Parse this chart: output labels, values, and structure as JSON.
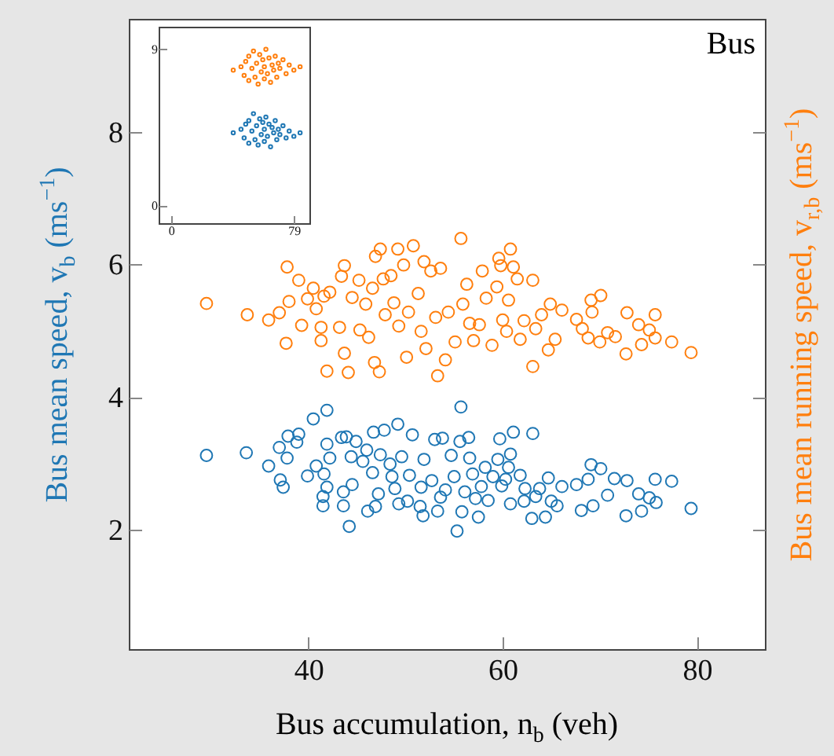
{
  "chart_data": [
    {
      "type": "scatter",
      "xlabel": "Bus accumulation, n$_{b}$ (veh)",
      "ylabel": "Bus mean speed, v$_{b}$ (ms$^{−1}$)",
      "y2label": "Bus mean running speed, v$_{r,b}$ (ms$^{−1}$)",
      "annotations": [
        "Bus"
      ],
      "marker": "circle",
      "xlim": [
        21.5,
        87
      ],
      "xticks": [
        40,
        60,
        80
      ],
      "ylim": [
        0.2,
        9.7
      ],
      "yticks": [
        2,
        4,
        6,
        8
      ],
      "series": [
        {
          "color": "#1f77b4",
          "x": [
            29.5,
            33.6,
            35.9,
            37.0,
            37.8,
            37.1,
            37.4,
            37.9,
            39.0,
            38.8,
            39.9,
            40.5,
            40.8,
            41.5,
            41.5,
            41.6,
            41.9,
            41.9,
            41.9,
            42.2,
            43.4,
            43.6,
            43.6,
            44.2,
            43.9,
            44.4,
            44.5,
            44.9,
            45.6,
            46.0,
            46.1,
            46.6,
            46.7,
            46.9,
            47.2,
            47.4,
            47.8,
            48.4,
            48.6,
            48.9,
            49.2,
            49.3,
            49.6,
            50.2,
            50.4,
            50.7,
            51.5,
            51.6,
            51.8,
            51.9,
            52.7,
            53.0,
            53.3,
            53.6,
            53.8,
            54.1,
            54.7,
            55.0,
            55.3,
            55.6,
            55.7,
            55.8,
            56.1,
            56.5,
            56.6,
            56.9,
            57.2,
            57.5,
            57.8,
            58.2,
            58.5,
            59.0,
            59.5,
            59.7,
            59.9,
            60.3,
            60.6,
            60.8,
            60.8,
            61.1,
            61.8,
            62.2,
            62.3,
            63.0,
            63.1,
            63.4,
            63.8,
            64.4,
            64.7,
            65.0,
            65.6,
            66.1,
            67.6,
            68.1,
            68.8,
            69.1,
            69.3,
            70.1,
            70.8,
            71.5,
            72.7,
            72.8,
            74.0,
            74.3,
            75.1,
            75.7,
            75.8,
            77.4,
            79.4
          ],
          "values": [
            3.12,
            3.16,
            2.96,
            3.24,
            3.08,
            2.75,
            2.64,
            3.41,
            3.44,
            3.32,
            2.81,
            3.67,
            2.96,
            2.5,
            2.36,
            2.84,
            3.8,
            3.29,
            2.64,
            3.08,
            3.39,
            2.57,
            2.36,
            2.05,
            3.4,
            3.1,
            2.68,
            3.33,
            3.03,
            3.2,
            2.28,
            2.86,
            3.47,
            2.35,
            2.54,
            3.13,
            3.5,
            2.99,
            2.8,
            2.62,
            3.59,
            2.39,
            3.1,
            2.43,
            2.82,
            3.43,
            2.35,
            2.64,
            2.21,
            3.06,
            2.74,
            3.36,
            2.28,
            2.49,
            3.38,
            2.6,
            3.12,
            2.8,
            1.98,
            3.33,
            3.85,
            2.27,
            2.57,
            3.39,
            3.08,
            2.84,
            2.47,
            2.19,
            2.65,
            2.94,
            2.44,
            2.8,
            3.06,
            3.37,
            2.66,
            2.76,
            2.94,
            3.14,
            2.39,
            3.47,
            2.82,
            2.43,
            2.62,
            2.17,
            3.45,
            2.5,
            2.62,
            2.19,
            2.78,
            2.43,
            2.36,
            2.65,
            2.68,
            2.29,
            2.76,
            2.98,
            2.36,
            2.92,
            2.52,
            2.77,
            2.21,
            2.74,
            2.54,
            2.28,
            2.48,
            2.76,
            2.41,
            2.73,
            2.32
          ]
        },
        {
          "color": "#ff7f0e",
          "x": [
            29.5,
            33.7,
            35.9,
            37.0,
            37.7,
            37.8,
            38.0,
            39.0,
            39.3,
            39.9,
            40.5,
            40.8,
            41.3,
            41.3,
            41.6,
            41.9,
            42.2,
            43.4,
            43.7,
            43.7,
            43.2,
            44.1,
            44.5,
            45.2,
            45.3,
            45.9,
            46.2,
            46.6,
            46.8,
            46.9,
            47.3,
            47.4,
            47.7,
            47.9,
            48.5,
            48.8,
            49.2,
            49.3,
            49.8,
            50.1,
            50.3,
            50.8,
            51.3,
            51.6,
            51.9,
            52.1,
            52.6,
            53.1,
            53.3,
            53.6,
            54.1,
            54.4,
            55.1,
            55.7,
            55.9,
            56.3,
            56.6,
            57.0,
            57.6,
            57.9,
            58.3,
            58.9,
            59.4,
            59.6,
            59.8,
            60.0,
            60.4,
            60.6,
            60.8,
            61.1,
            61.5,
            61.8,
            62.2,
            63.1,
            63.1,
            63.4,
            64.0,
            64.7,
            64.9,
            65.4,
            66.1,
            67.6,
            68.2,
            68.8,
            69.1,
            69.2,
            70.0,
            70.1,
            70.8,
            71.6,
            72.7,
            72.8,
            74.0,
            74.3,
            75.1,
            75.7,
            75.7,
            77.4,
            79.4
          ],
          "values": [
            5.41,
            5.24,
            5.16,
            5.27,
            4.81,
            5.96,
            5.44,
            5.76,
            5.08,
            5.48,
            5.64,
            5.33,
            5.05,
            4.85,
            5.52,
            4.39,
            5.58,
            5.82,
            5.98,
            4.66,
            5.05,
            4.37,
            5.5,
            5.76,
            5.01,
            5.4,
            4.9,
            5.64,
            4.52,
            6.12,
            4.38,
            6.23,
            5.78,
            5.24,
            5.83,
            5.42,
            6.23,
            5.07,
            5.99,
            4.6,
            5.28,
            6.28,
            5.56,
            4.99,
            6.04,
            4.73,
            5.9,
            5.2,
            4.32,
            5.94,
            4.56,
            5.28,
            4.83,
            6.39,
            5.4,
            5.7,
            5.11,
            4.85,
            5.09,
            5.9,
            5.49,
            4.78,
            5.66,
            6.09,
            5.98,
            5.16,
            4.99,
            5.46,
            6.23,
            5.96,
            5.78,
            4.87,
            5.15,
            5.76,
            4.46,
            5.03,
            5.24,
            4.71,
            5.4,
            4.87,
            5.31,
            5.17,
            5.03,
            4.89,
            5.46,
            5.28,
            4.83,
            5.53,
            4.97,
            4.91,
            4.65,
            5.27,
            5.09,
            4.79,
            5.01,
            5.24,
            4.89,
            4.83,
            4.67
          ]
        }
      ]
    },
    {
      "type": "scatter",
      "marker": "circle",
      "xlim": [
        -8,
        89
      ],
      "xticks": [
        0,
        79
      ],
      "ylim": [
        -1,
        10.3
      ],
      "yticks": [
        0,
        9
      ],
      "series": [
        {
          "color": "#ff7f0e",
          "x": [
            40,
            45,
            47,
            48,
            50,
            50,
            52,
            53,
            54,
            55,
            56,
            57,
            58,
            59,
            60,
            60,
            61,
            62,
            63,
            64,
            65,
            66,
            67,
            68,
            69,
            70,
            72,
            74,
            76,
            79,
            83
          ],
          "values": [
            7.8,
            8.0,
            7.5,
            8.3,
            7.2,
            8.6,
            7.9,
            8.9,
            7.4,
            8.2,
            7.0,
            8.7,
            7.7,
            8.4,
            7.3,
            8.0,
            9.0,
            7.6,
            8.5,
            7.1,
            8.1,
            7.8,
            8.6,
            7.4,
            8.2,
            7.9,
            8.4,
            7.6,
            8.1,
            7.8,
            8.0
          ]
        },
        {
          "color": "#1f77b4",
          "x": [
            40,
            45,
            47,
            48,
            50,
            50,
            52,
            53,
            54,
            55,
            56,
            57,
            58,
            59,
            60,
            60,
            61,
            62,
            63,
            64,
            65,
            66,
            67,
            68,
            69,
            70,
            72,
            74,
            76,
            79,
            83
          ],
          "values": [
            4.2,
            4.4,
            3.9,
            4.7,
            3.6,
            4.9,
            4.3,
            5.3,
            3.8,
            4.6,
            3.5,
            5.0,
            4.1,
            4.8,
            3.7,
            4.4,
            5.1,
            4.0,
            4.7,
            3.4,
            4.5,
            4.2,
            4.9,
            3.8,
            4.4,
            4.1,
            4.6,
            3.9,
            4.3,
            4.0,
            4.2
          ]
        }
      ]
    }
  ]
}
